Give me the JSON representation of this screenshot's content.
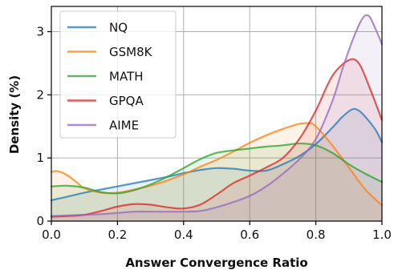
{
  "chart_data": {
    "type": "area",
    "xlabel": "Answer Convergence Ratio",
    "ylabel": "Density (%)",
    "xlim": [
      0.0,
      1.0
    ],
    "ylim": [
      0.0,
      3.4
    ],
    "x_ticks": [
      0.0,
      0.2,
      0.4,
      0.6,
      0.8,
      1.0
    ],
    "x_tick_labels": [
      "0.0",
      "0.2",
      "0.4",
      "0.6",
      "0.8",
      "1.0"
    ],
    "y_ticks": [
      0,
      1,
      2,
      3
    ],
    "y_tick_labels": [
      "0",
      "1",
      "2",
      "3"
    ],
    "grid": true,
    "legend_position": "top-left",
    "series": [
      {
        "name": "NQ",
        "color": "#1f77b4",
        "x": [
          0.0,
          0.05,
          0.1,
          0.15,
          0.2,
          0.25,
          0.3,
          0.35,
          0.4,
          0.45,
          0.5,
          0.55,
          0.6,
          0.65,
          0.7,
          0.75,
          0.8,
          0.85,
          0.88,
          0.91,
          0.93,
          0.95,
          0.98,
          1.0
        ],
        "values": [
          0.33,
          0.39,
          0.45,
          0.5,
          0.55,
          0.6,
          0.65,
          0.7,
          0.76,
          0.81,
          0.84,
          0.83,
          0.8,
          0.8,
          0.9,
          1.03,
          1.22,
          1.48,
          1.65,
          1.77,
          1.75,
          1.65,
          1.45,
          1.25
        ]
      },
      {
        "name": "GSM8K",
        "color": "#ff7f0e",
        "x": [
          0.0,
          0.02,
          0.05,
          0.08,
          0.1,
          0.15,
          0.2,
          0.25,
          0.3,
          0.35,
          0.4,
          0.45,
          0.5,
          0.55,
          0.6,
          0.65,
          0.7,
          0.75,
          0.78,
          0.8,
          0.85,
          0.9,
          0.95,
          1.0
        ],
        "values": [
          0.78,
          0.79,
          0.72,
          0.6,
          0.52,
          0.45,
          0.45,
          0.5,
          0.56,
          0.64,
          0.74,
          0.86,
          0.97,
          1.1,
          1.24,
          1.36,
          1.46,
          1.54,
          1.55,
          1.5,
          1.2,
          0.85,
          0.5,
          0.25
        ]
      },
      {
        "name": "MATH",
        "color": "#2ca02c",
        "x": [
          0.0,
          0.05,
          0.1,
          0.15,
          0.2,
          0.25,
          0.3,
          0.35,
          0.4,
          0.45,
          0.5,
          0.55,
          0.6,
          0.65,
          0.7,
          0.75,
          0.8,
          0.85,
          0.9,
          0.95,
          1.0
        ],
        "values": [
          0.55,
          0.56,
          0.53,
          0.46,
          0.44,
          0.49,
          0.58,
          0.7,
          0.84,
          0.98,
          1.08,
          1.12,
          1.15,
          1.18,
          1.2,
          1.23,
          1.2,
          1.08,
          0.9,
          0.75,
          0.62
        ]
      },
      {
        "name": "GPQA",
        "color": "#d62728",
        "x": [
          0.0,
          0.05,
          0.1,
          0.15,
          0.2,
          0.25,
          0.3,
          0.35,
          0.4,
          0.45,
          0.5,
          0.55,
          0.6,
          0.65,
          0.7,
          0.75,
          0.8,
          0.85,
          0.9,
          0.93,
          0.96,
          1.0
        ],
        "values": [
          0.07,
          0.08,
          0.1,
          0.16,
          0.23,
          0.27,
          0.26,
          0.22,
          0.2,
          0.26,
          0.42,
          0.6,
          0.72,
          0.85,
          1.0,
          1.3,
          1.75,
          2.3,
          2.55,
          2.5,
          2.15,
          1.6
        ]
      },
      {
        "name": "AIME",
        "color": "#9467bd",
        "x": [
          0.0,
          0.05,
          0.1,
          0.15,
          0.2,
          0.25,
          0.3,
          0.35,
          0.4,
          0.45,
          0.5,
          0.55,
          0.6,
          0.65,
          0.7,
          0.75,
          0.8,
          0.85,
          0.88,
          0.91,
          0.94,
          0.96,
          0.98,
          1.0
        ],
        "values": [
          0.08,
          0.09,
          0.1,
          0.11,
          0.13,
          0.15,
          0.15,
          0.15,
          0.15,
          0.16,
          0.22,
          0.3,
          0.4,
          0.55,
          0.75,
          0.98,
          1.3,
          1.9,
          2.4,
          2.85,
          3.2,
          3.25,
          3.05,
          2.8
        ]
      }
    ]
  }
}
